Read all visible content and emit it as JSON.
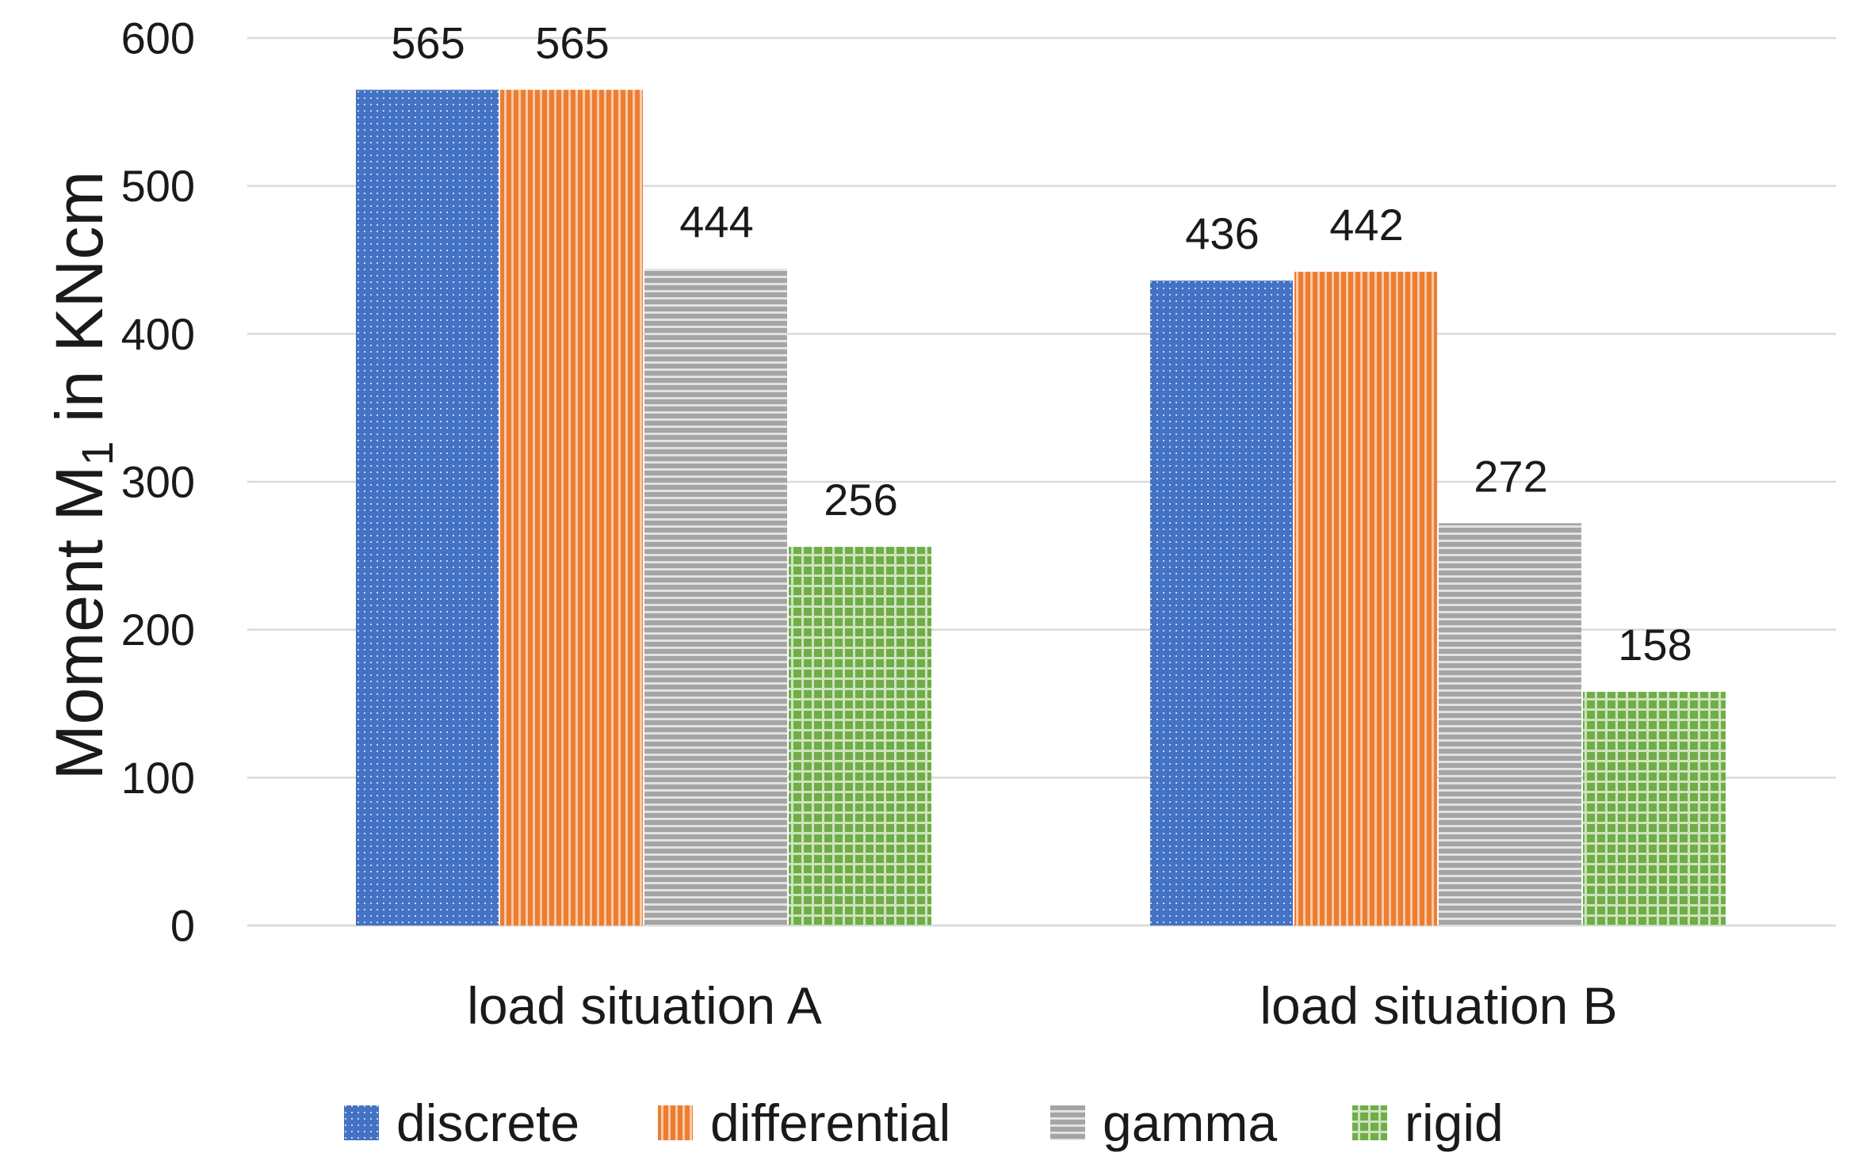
{
  "chart_data": {
    "type": "bar",
    "title": "",
    "xlabel": "",
    "ylabel": {
      "prefix": "Moment M",
      "subscript": "1",
      "suffix": " in KNcm"
    },
    "ylim": [
      0,
      600
    ],
    "yticks": [
      0,
      100,
      200,
      300,
      400,
      500,
      600
    ],
    "ytick_labels": [
      "0",
      "100",
      "200",
      "300",
      "400",
      "500",
      "600"
    ],
    "grid": true,
    "legend_position": "bottom",
    "categories": [
      "load situation A",
      "load situation B"
    ],
    "series": [
      {
        "name": "discrete",
        "values": [
          565,
          436
        ],
        "color": "#4472C4",
        "pattern": "dots",
        "labels": [
          "565",
          "436"
        ]
      },
      {
        "name": "differential",
        "values": [
          565,
          442
        ],
        "color": "#ED7D31",
        "pattern": "vertical",
        "labels": [
          "565",
          "442"
        ]
      },
      {
        "name": "gamma",
        "values": [
          444,
          272
        ],
        "color": "#A5A5A5",
        "pattern": "horizontal",
        "labels": [
          "444",
          "272"
        ]
      },
      {
        "name": "rigid",
        "values": [
          256,
          158
        ],
        "color": "#70AD47",
        "pattern": "grid",
        "labels": [
          "256",
          "158"
        ]
      }
    ]
  }
}
